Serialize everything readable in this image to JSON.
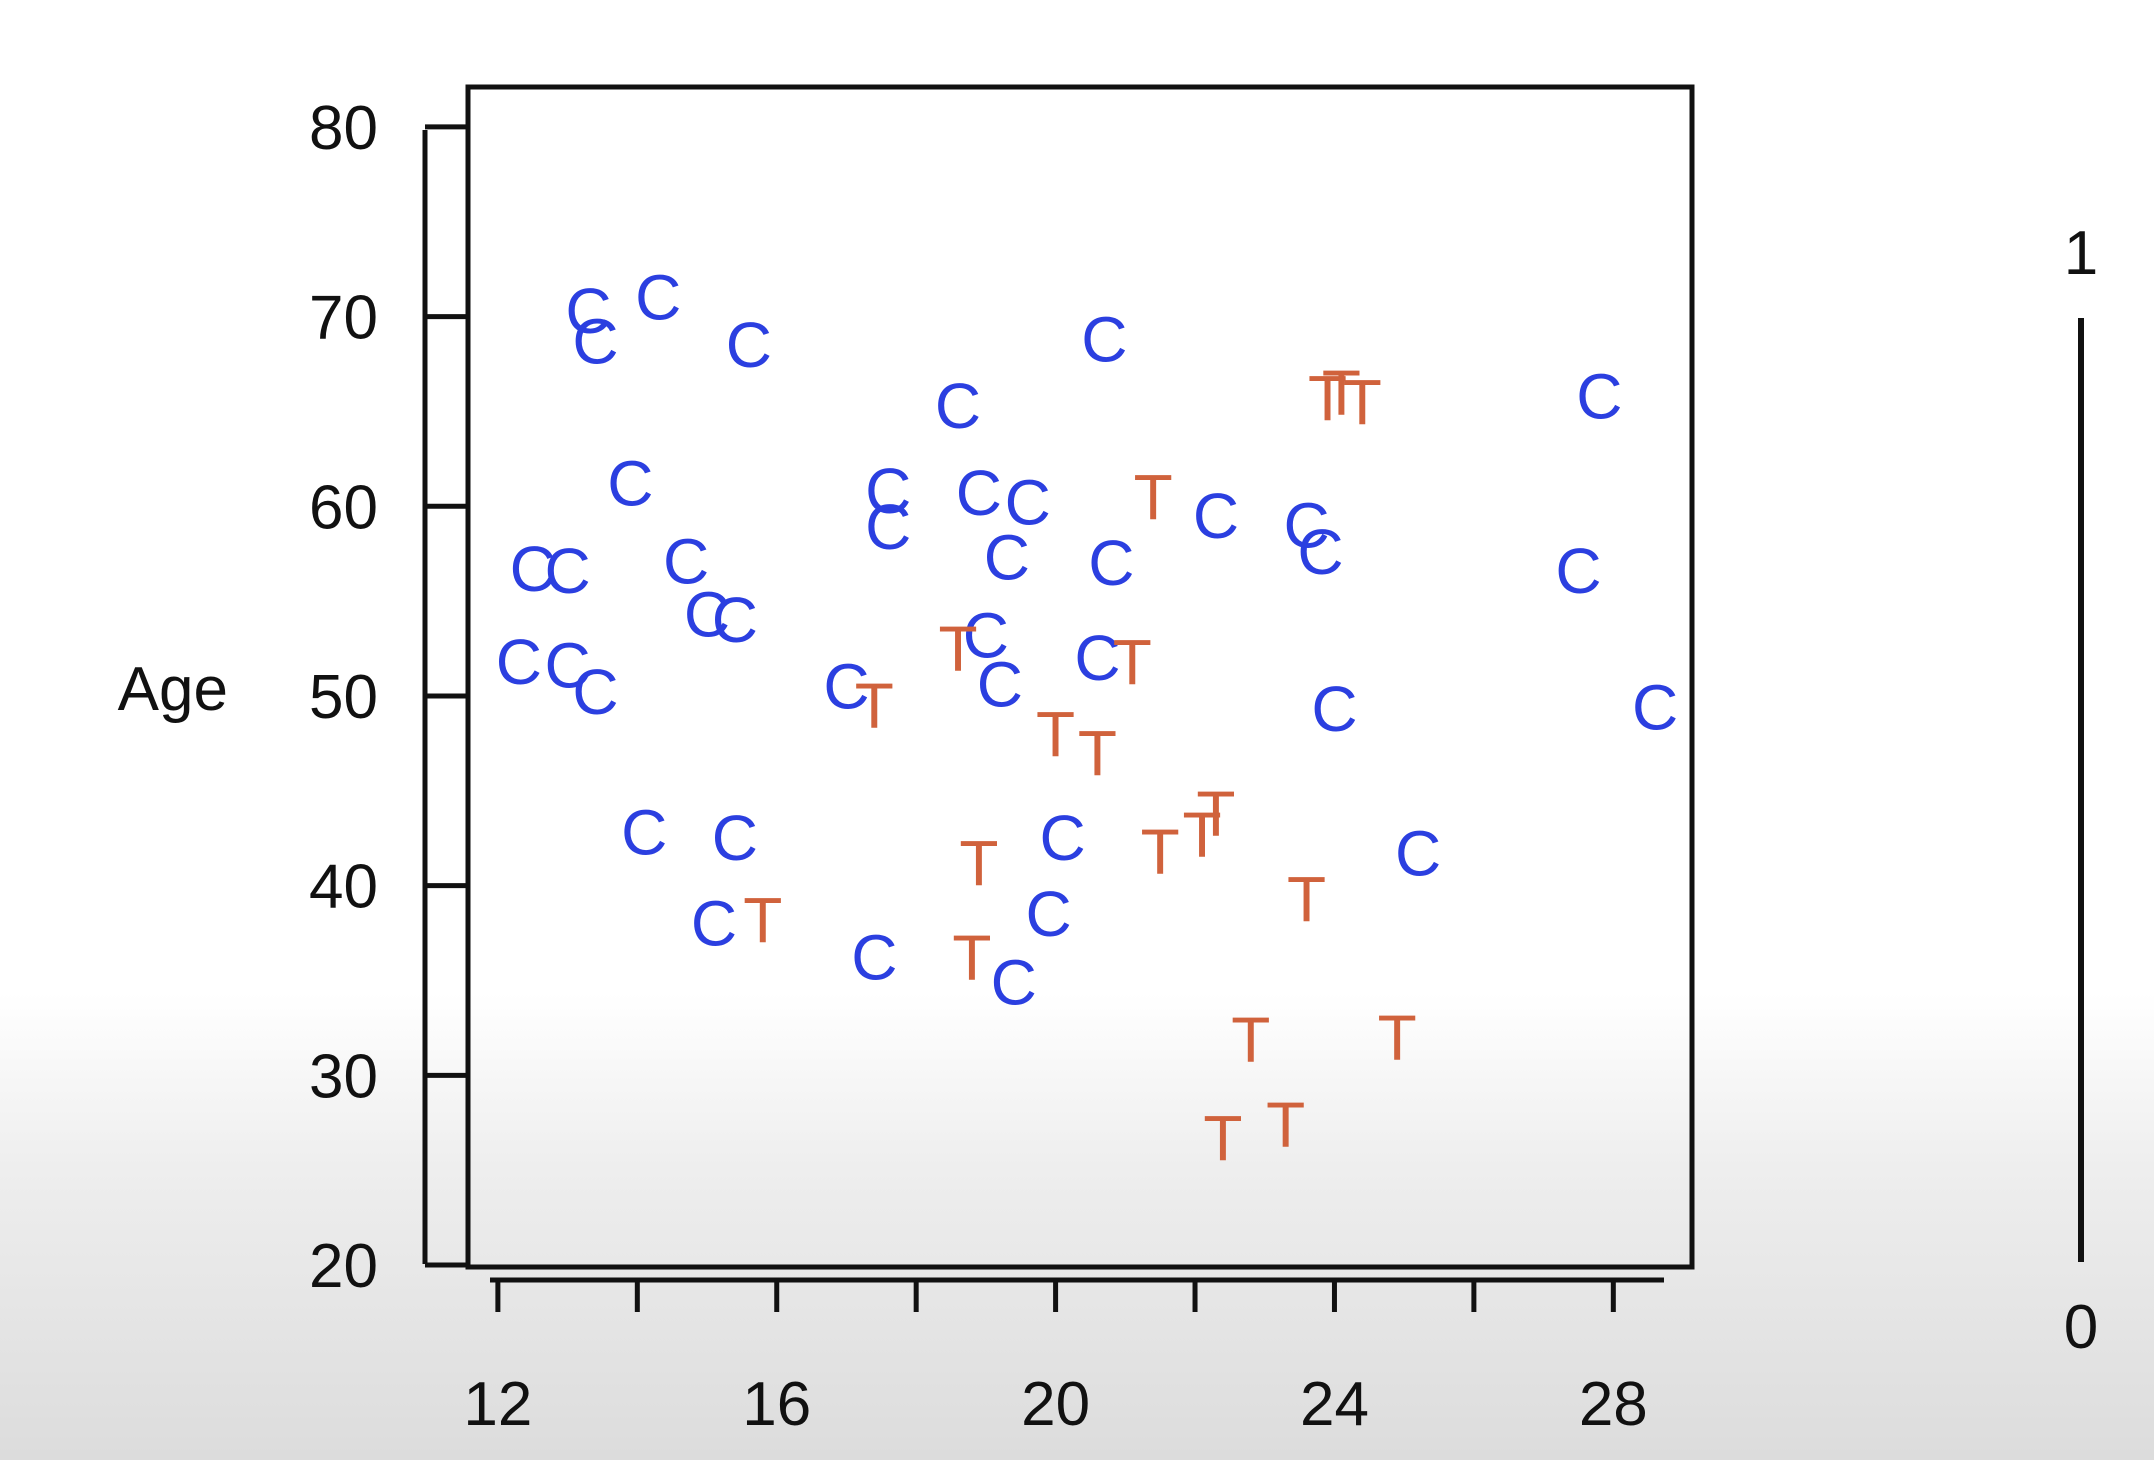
{
  "chart_data": {
    "type": "scatter",
    "title": "",
    "xlabel": "",
    "ylabel": "Age",
    "xlim": [
      11.6,
      29.1
    ],
    "ylim": [
      20,
      82
    ],
    "xticks": [
      12,
      14,
      16,
      18,
      20,
      22,
      24,
      26,
      28
    ],
    "xtick_labels": [
      "12",
      "",
      "16",
      "",
      "20",
      "",
      "24",
      "",
      "28"
    ],
    "yticks": [
      20,
      30,
      40,
      50,
      60,
      70,
      80
    ],
    "grid": false,
    "colors": {
      "C": "#2b3fe0",
      "T": "#d0623c"
    },
    "series": [
      {
        "label": "C",
        "points": [
          [
            13.3,
            70.3
          ],
          [
            14.3,
            71.0
          ],
          [
            13.4,
            68.7
          ],
          [
            15.6,
            68.5
          ],
          [
            20.7,
            68.8
          ],
          [
            18.6,
            65.3
          ],
          [
            27.8,
            65.8
          ],
          [
            13.9,
            61.2
          ],
          [
            17.6,
            60.8
          ],
          [
            18.9,
            60.7
          ],
          [
            19.6,
            60.2
          ],
          [
            17.6,
            58.9
          ],
          [
            22.3,
            59.5
          ],
          [
            23.6,
            59.0
          ],
          [
            23.8,
            57.6
          ],
          [
            19.3,
            57.3
          ],
          [
            20.8,
            57.0
          ],
          [
            12.5,
            56.7
          ],
          [
            13.0,
            56.6
          ],
          [
            14.7,
            57.1
          ],
          [
            27.5,
            56.6
          ],
          [
            15.0,
            54.3
          ],
          [
            15.4,
            54.0
          ],
          [
            19.0,
            53.2
          ],
          [
            20.6,
            52.0
          ],
          [
            12.3,
            51.8
          ],
          [
            13.0,
            51.6
          ],
          [
            13.4,
            50.2
          ],
          [
            19.2,
            50.6
          ],
          [
            17.0,
            50.5
          ],
          [
            24.0,
            49.3
          ],
          [
            28.6,
            49.4
          ],
          [
            14.1,
            42.8
          ],
          [
            15.4,
            42.5
          ],
          [
            20.1,
            42.5
          ],
          [
            25.2,
            41.7
          ],
          [
            15.1,
            38.0
          ],
          [
            19.9,
            38.5
          ],
          [
            17.4,
            36.2
          ],
          [
            19.4,
            34.9
          ]
        ]
      },
      {
        "label": "T",
        "points": [
          [
            23.9,
            65.7
          ],
          [
            24.1,
            66.0
          ],
          [
            24.4,
            65.5
          ],
          [
            21.4,
            60.5
          ],
          [
            18.6,
            52.5
          ],
          [
            21.1,
            51.8
          ],
          [
            17.4,
            49.5
          ],
          [
            20.0,
            48.0
          ],
          [
            20.6,
            47.0
          ],
          [
            22.3,
            43.8
          ],
          [
            22.1,
            42.7
          ],
          [
            21.5,
            41.8
          ],
          [
            18.9,
            41.2
          ],
          [
            23.6,
            39.3
          ],
          [
            15.8,
            38.2
          ],
          [
            18.8,
            36.2
          ],
          [
            22.8,
            31.9
          ],
          [
            24.9,
            32.0
          ],
          [
            23.3,
            27.4
          ],
          [
            22.4,
            26.7
          ]
        ]
      }
    ]
  },
  "side_scale": {
    "top_label": "1",
    "bottom_label": "0"
  }
}
